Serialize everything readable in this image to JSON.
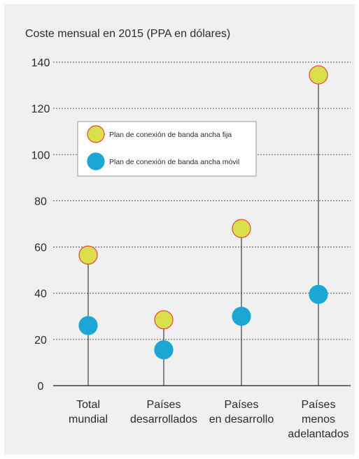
{
  "chart_data": {
    "type": "scatter",
    "title": "Coste mensual en 2015 (PPA en dólares)",
    "categories": [
      [
        "Total",
        "mundial"
      ],
      [
        "Países",
        "desarrollados"
      ],
      [
        "Países",
        "en desarrollo"
      ],
      [
        "Países",
        "menos",
        "adelantados"
      ]
    ],
    "series": [
      {
        "name": "Plan de conexión de banda ancha fija",
        "color": "#d9e04a",
        "edge_color": "#e8443a",
        "values": [
          56.5,
          28.5,
          68,
          134.5
        ]
      },
      {
        "name": "Plan de conexión de banda ancha móvil",
        "color": "#1aa7d4",
        "edge_color": "#1aa7d4",
        "values": [
          26,
          15.5,
          30,
          39.5
        ]
      }
    ],
    "yticks": [
      0,
      20,
      40,
      60,
      80,
      100,
      120,
      140
    ],
    "ylim": [
      0,
      140
    ],
    "grid": true,
    "legend_position": "upper-left",
    "stem_color": "#1a1a1a"
  }
}
